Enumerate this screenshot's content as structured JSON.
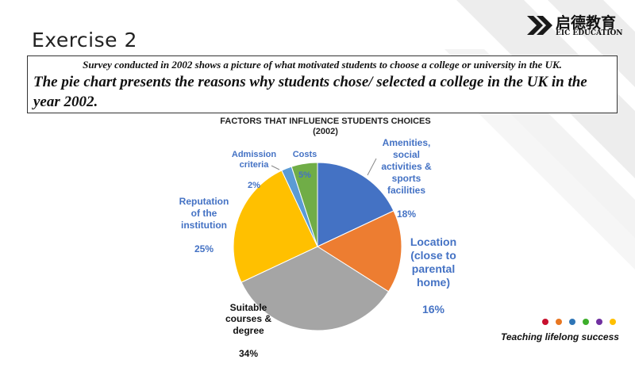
{
  "slide": {
    "exercise_title": "Exercise 2",
    "intro_line1": "Survey conducted in 2002 shows a picture of what motivated students to choose a college or university in the UK.",
    "intro_line2": "The pie chart presents the reasons why students chose/ selected a college in the UK in the year 2002.",
    "tagline": "Teaching lifelong success"
  },
  "logo": {
    "cn": "启德教育",
    "en": "EIC EDUCATION",
    "icon": "eic-logo-icon"
  },
  "footer_dots": [
    "#C8102E",
    "#E87722",
    "#2E75B6",
    "#3DAE2B",
    "#7030A0",
    "#FFC000"
  ],
  "chart_data": {
    "type": "pie",
    "title": "FACTORS THAT INFLUENCE  STUDENTS CHOICES",
    "subtitle": "(2002)",
    "slices": [
      {
        "label": "Amenities,\nsocial\nactivities &\nsports\nfacilities",
        "value": 18,
        "value_text": "18%",
        "color": "#4472C4"
      },
      {
        "label": "Location\n(close to\nparental\nhome)",
        "value": 16,
        "value_text": "16%",
        "color": "#ED7D31"
      },
      {
        "label": "Suitable\ncourses  &\ndegree",
        "value": 34,
        "value_text": "34%",
        "color": "#A5A5A5"
      },
      {
        "label": "Reputation\nof the\ninstitution",
        "value": 25,
        "value_text": "25%",
        "color": "#FFC000"
      },
      {
        "label": "Admission\ncriteria",
        "value": 2,
        "value_text": "2%",
        "color": "#5B9BD5"
      },
      {
        "label": "Costs",
        "value": 5,
        "value_text": "5%",
        "color": "#70AD47"
      }
    ],
    "start_angle_deg": 0,
    "direction": "clockwise"
  }
}
